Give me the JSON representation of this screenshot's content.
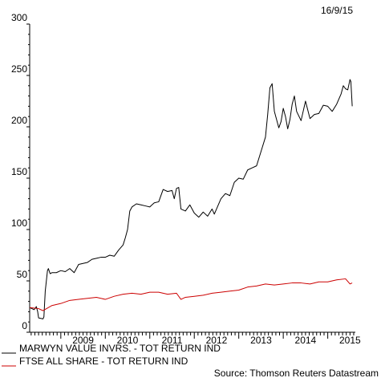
{
  "date_stamp": "16/9/15",
  "source": "Source: Thomson Reuters Datastream",
  "chart_data": {
    "type": "line",
    "title": "",
    "xlabel": "",
    "ylabel": "",
    "xlim": [
      2008.3,
      2015.62
    ],
    "ylim": [
      0,
      300
    ],
    "y_ticks": [
      0,
      50,
      100,
      150,
      200,
      250,
      300
    ],
    "x_tick_labels": [
      "2009",
      "2010",
      "2011",
      "2012",
      "2013",
      "2014",
      "2015"
    ],
    "x_tick_positions": [
      2009.0,
      2010.0,
      2011.0,
      2012.0,
      2013.0,
      2014.0,
      2015.0
    ],
    "grid": false,
    "legend_position": "bottom-left",
    "series": [
      {
        "name": "MARWYN VALUE INVRS. - TOT RETURN IND",
        "color": "#000000",
        "x": [
          2008.3,
          2008.4,
          2008.45,
          2008.48,
          2008.5,
          2008.6,
          2008.62,
          2008.65,
          2008.7,
          2008.72,
          2008.76,
          2008.8,
          2008.9,
          2009.0,
          2009.1,
          2009.2,
          2009.3,
          2009.4,
          2009.5,
          2009.6,
          2009.7,
          2009.8,
          2009.9,
          2010.0,
          2010.1,
          2010.2,
          2010.3,
          2010.4,
          2010.45,
          2010.5,
          2010.55,
          2010.6,
          2010.7,
          2010.8,
          2010.9,
          2011.0,
          2011.05,
          2011.1,
          2011.2,
          2011.3,
          2011.4,
          2011.5,
          2011.55,
          2011.6,
          2011.65,
          2011.7,
          2011.8,
          2011.9,
          2012.0,
          2012.1,
          2012.2,
          2012.3,
          2012.4,
          2012.45,
          2012.5,
          2012.6,
          2012.7,
          2012.8,
          2012.9,
          2013.0,
          2013.1,
          2013.2,
          2013.3,
          2013.4,
          2013.5,
          2013.6,
          2013.65,
          2013.7,
          2013.75,
          2013.8,
          2013.9,
          2013.95,
          2014.0,
          2014.05,
          2014.1,
          2014.15,
          2014.2,
          2014.25,
          2014.3,
          2014.4,
          2014.5,
          2014.6,
          2014.7,
          2014.8,
          2014.9,
          2015.0,
          2015.1,
          2015.2,
          2015.3,
          2015.35,
          2015.4,
          2015.45,
          2015.5,
          2015.52,
          2015.55
        ],
        "y": [
          24,
          22,
          25,
          20,
          14,
          13,
          15,
          40,
          60,
          62,
          57,
          58,
          58,
          60,
          59,
          62,
          58,
          66,
          67,
          68,
          71,
          72,
          73,
          73,
          75,
          74,
          80,
          85,
          92,
          100,
          118,
          122,
          125,
          124,
          123,
          122,
          124,
          126,
          127,
          139,
          137,
          138,
          130,
          140,
          141,
          120,
          118,
          124,
          116,
          112,
          117,
          113,
          120,
          115,
          120,
          130,
          135,
          133,
          146,
          150,
          149,
          158,
          160,
          162,
          176,
          190,
          212,
          238,
          242,
          215,
          199,
          205,
          218,
          210,
          198,
          207,
          222,
          230,
          215,
          206,
          225,
          208,
          212,
          213,
          221,
          220,
          215,
          222,
          232,
          240,
          237,
          236,
          246,
          244,
          220
        ]
      },
      {
        "name": "FTSE ALL SHARE - TOT RETURN IND",
        "color": "#cc0000",
        "x": [
          2008.3,
          2008.5,
          2008.6,
          2008.8,
          2009.0,
          2009.2,
          2009.4,
          2009.6,
          2009.8,
          2010.0,
          2010.2,
          2010.4,
          2010.6,
          2010.8,
          2011.0,
          2011.2,
          2011.4,
          2011.6,
          2011.7,
          2011.8,
          2012.0,
          2012.2,
          2012.4,
          2012.6,
          2012.8,
          2013.0,
          2013.2,
          2013.4,
          2013.6,
          2013.8,
          2014.0,
          2014.2,
          2014.4,
          2014.6,
          2014.8,
          2015.0,
          2015.2,
          2015.4,
          2015.5,
          2015.55
        ],
        "y": [
          24,
          23,
          21,
          26,
          28,
          31,
          32,
          33,
          34,
          32,
          35,
          37,
          38,
          37,
          39,
          39,
          37,
          38,
          32,
          34,
          35,
          36,
          38,
          39,
          40,
          41,
          44,
          45,
          47,
          46,
          47,
          48,
          48,
          47,
          49,
          49,
          51,
          52,
          47,
          48
        ]
      }
    ]
  }
}
